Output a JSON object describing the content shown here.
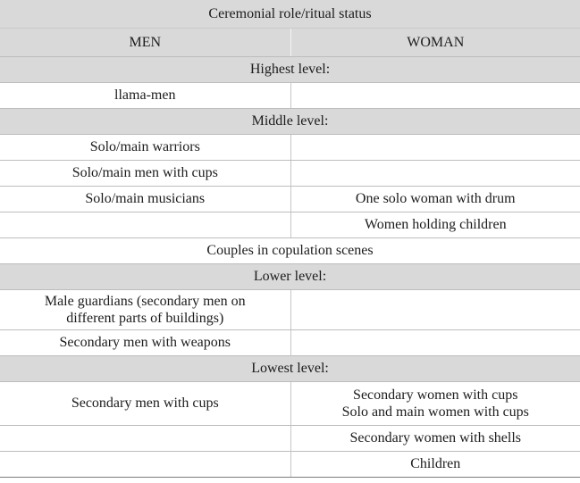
{
  "table": {
    "title": "Ceremonial role/ritual status",
    "col_men": "MEN",
    "col_woman": "WOMAN",
    "sections": [
      {
        "heading": "Highest level:",
        "rows": [
          {
            "men": "llama-men",
            "woman": ""
          }
        ]
      },
      {
        "heading": "Middle level:",
        "rows": [
          {
            "men": "Solo/main warriors",
            "woman": ""
          },
          {
            "men": "Solo/main men with cups",
            "woman": ""
          },
          {
            "men": "Solo/main musicians",
            "woman": "One solo woman with drum"
          },
          {
            "men": "",
            "woman": "Women holding children"
          },
          {
            "span": "Couples in copulation scenes"
          }
        ]
      },
      {
        "heading": "Lower level:",
        "rows": [
          {
            "men": [
              "Male guardians (secondary men on",
              "different parts of buildings)"
            ],
            "woman": ""
          },
          {
            "men": "Secondary men with weapons",
            "woman": ""
          }
        ]
      },
      {
        "heading": "Lowest level:",
        "rows": [
          {
            "men": "Secondary men with cups",
            "woman": [
              "Secondary women with cups",
              "Solo and main women with cups"
            ]
          },
          {
            "men": "",
            "woman": "Secondary women with shells"
          },
          {
            "men": "",
            "woman": "Children"
          }
        ]
      }
    ]
  }
}
